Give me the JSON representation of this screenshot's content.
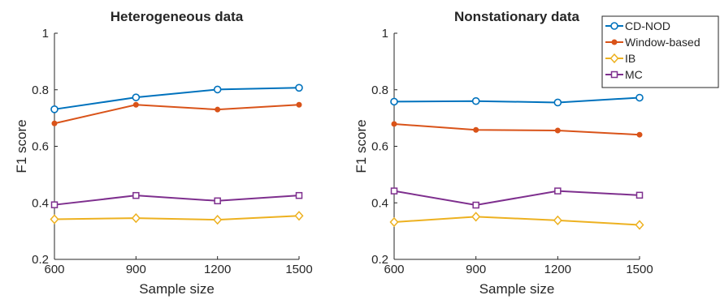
{
  "chart_data": [
    {
      "type": "line",
      "title": "Heterogeneous data",
      "xlabel": "Sample size",
      "ylabel": "F1 score",
      "x": [
        600,
        900,
        1200,
        1500
      ],
      "x_tick_labels": [
        "600",
        "900",
        "1200",
        "1500"
      ],
      "y_ticks": [
        0.2,
        0.4,
        0.6,
        0.8,
        1
      ],
      "y_tick_labels": [
        "0.2",
        "0.4",
        "0.6",
        "0.8",
        "1"
      ],
      "xlim": [
        600,
        1500
      ],
      "ylim": [
        0.2,
        1
      ],
      "grid": false,
      "series": [
        {
          "name": "CD-NOD",
          "values": [
            0.731,
            0.773,
            0.801,
            0.807
          ],
          "color": "#0072BD",
          "marker": "circle"
        },
        {
          "name": "Window-based",
          "values": [
            0.681,
            0.747,
            0.73,
            0.747
          ],
          "color": "#D95319",
          "marker": "dot"
        },
        {
          "name": "IB",
          "values": [
            0.342,
            0.346,
            0.34,
            0.354
          ],
          "color": "#EDB120",
          "marker": "diamond"
        },
        {
          "name": "MC",
          "values": [
            0.393,
            0.426,
            0.407,
            0.426
          ],
          "color": "#7E2F8E",
          "marker": "square"
        }
      ]
    },
    {
      "type": "line",
      "title": "Nonstationary data",
      "xlabel": "Sample size",
      "ylabel": "F1 score",
      "x": [
        600,
        900,
        1200,
        1500
      ],
      "x_tick_labels": [
        "600",
        "900",
        "1200",
        "1500"
      ],
      "y_ticks": [
        0.2,
        0.4,
        0.6,
        0.8,
        1
      ],
      "y_tick_labels": [
        "0.2",
        "0.4",
        "0.6",
        "0.8",
        "1"
      ],
      "xlim": [
        600,
        1500
      ],
      "ylim": [
        0.2,
        1
      ],
      "grid": false,
      "legend": "top-right",
      "series": [
        {
          "name": "CD-NOD",
          "values": [
            0.758,
            0.76,
            0.755,
            0.772
          ],
          "color": "#0072BD",
          "marker": "circle"
        },
        {
          "name": "Window-based",
          "values": [
            0.679,
            0.658,
            0.656,
            0.641
          ],
          "color": "#D95319",
          "marker": "dot"
        },
        {
          "name": "IB",
          "values": [
            0.332,
            0.351,
            0.338,
            0.322
          ],
          "color": "#EDB120",
          "marker": "diamond"
        },
        {
          "name": "MC",
          "values": [
            0.442,
            0.392,
            0.442,
            0.427
          ],
          "color": "#7E2F8E",
          "marker": "square"
        }
      ]
    }
  ],
  "legend": {
    "entries": [
      "CD-NOD",
      "Window-based",
      "IB",
      "MC"
    ]
  }
}
